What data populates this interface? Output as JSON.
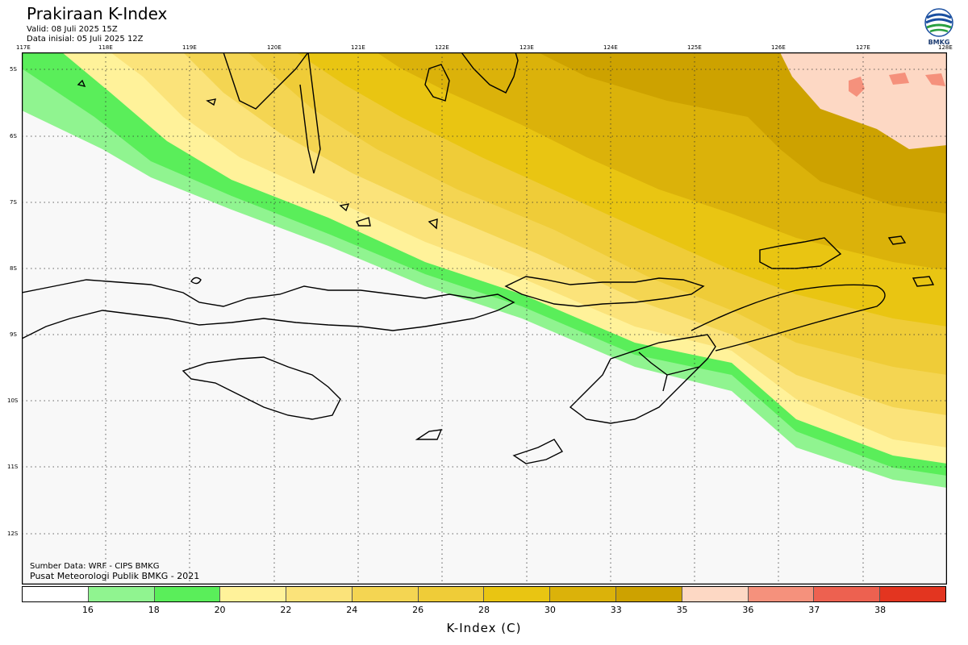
{
  "header": {
    "title": "Prakiraan K-Index",
    "valid": "Valid: 08 Juli 2025 15Z",
    "init": "Data inisial: 05 Juli 2025 12Z"
  },
  "logo": {
    "text": "BMKG",
    "icon": "bmkg-logo-icon"
  },
  "map": {
    "lon_labels": [
      "117E",
      "118E",
      "119E",
      "120E",
      "121E",
      "122E",
      "123E",
      "124E",
      "125E",
      "126E",
      "127E",
      "128E"
    ],
    "lat_labels": [
      "5S",
      "6S",
      "7S",
      "8S",
      "9S",
      "10S",
      "11S",
      "12S"
    ],
    "lon_range": [
      117,
      128
    ],
    "lat_range": [
      -4.8,
      -12.8
    ]
  },
  "credits": {
    "source": "Sumber Data: WRF - CIPS BMKG",
    "org": "Pusat Meteorologi Publik BMKG - 2021"
  },
  "legend": {
    "title": "K-Index (C)",
    "labels": [
      "16",
      "18",
      "20",
      "22",
      "24",
      "26",
      "28",
      "30",
      "33",
      "35",
      "36",
      "37",
      "38"
    ],
    "colors": [
      "#ffffff",
      "#90f490",
      "#5aee5a",
      "#fff29a",
      "#fbe37a",
      "#f4d552",
      "#efcc38",
      "#e9c512",
      "#dbb20a",
      "#cda200",
      "#fdd8c4",
      "#f5917c",
      "#ed6150",
      "#e33520"
    ]
  }
}
